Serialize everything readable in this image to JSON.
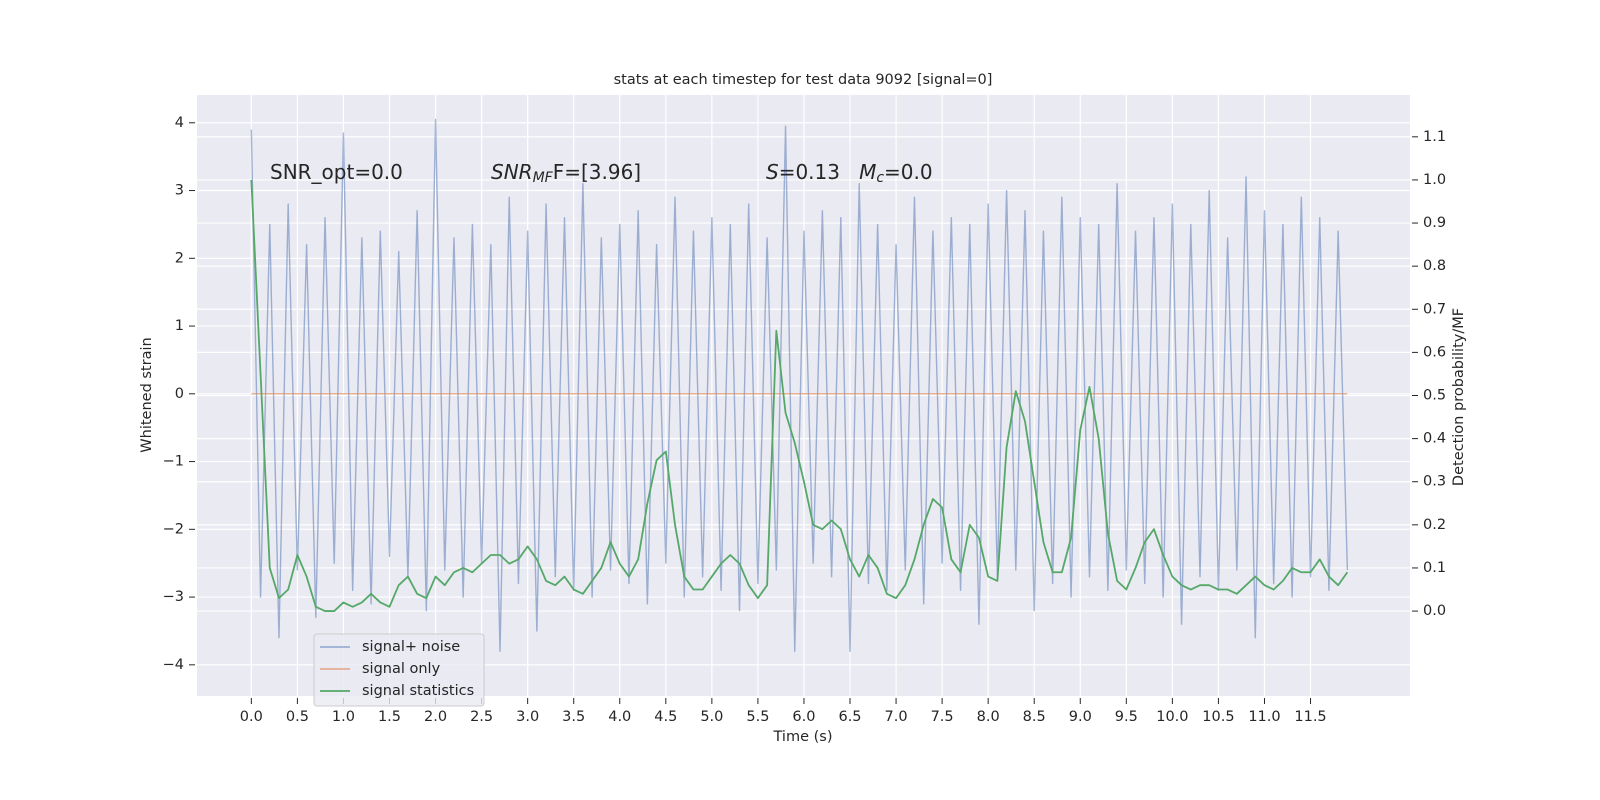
{
  "chart_data": {
    "type": "line",
    "title": "stats at each timestep for test data 9092 [signal=0]",
    "xlabel": "Time (s)",
    "ylabel": "Whitened strain",
    "y2label": "Detection probability/MF",
    "annotations": [
      {
        "segments": [
          {
            "text": "SNR_opt=0.0",
            "style": "normal"
          }
        ]
      },
      {
        "segments": [
          {
            "text": "SNR",
            "style": "italic"
          },
          {
            "text": "MF",
            "style": "italic-sub"
          },
          {
            "text": "F=[3.96]",
            "style": "normal"
          }
        ]
      },
      {
        "segments": [
          {
            "text": "S",
            "style": "italic"
          },
          {
            "text": "=0.13   ",
            "style": "normal"
          },
          {
            "text": "M",
            "style": "italic"
          },
          {
            "text": "c",
            "style": "italic-sub"
          },
          {
            "text": "=0.0",
            "style": "normal"
          }
        ]
      }
    ],
    "x": [
      0,
      0.1,
      0.2,
      0.3,
      0.4,
      0.5,
      0.6,
      0.7,
      0.8,
      0.9,
      1,
      1.1,
      1.2,
      1.3,
      1.4,
      1.5,
      1.6,
      1.7,
      1.8,
      1.9,
      2,
      2.1,
      2.2,
      2.3,
      2.4,
      2.5,
      2.6,
      2.7,
      2.8,
      2.9,
      3,
      3.1,
      3.2,
      3.3,
      3.4,
      3.5,
      3.6,
      3.7,
      3.8,
      3.9,
      4,
      4.1,
      4.2,
      4.3,
      4.4,
      4.5,
      4.6,
      4.7,
      4.8,
      4.9,
      5,
      5.1,
      5.2,
      5.3,
      5.4,
      5.5,
      5.6,
      5.7,
      5.8,
      5.9,
      6,
      6.1,
      6.2,
      6.3,
      6.4,
      6.5,
      6.6,
      6.7,
      6.8,
      6.9,
      7,
      7.1,
      7.2,
      7.3,
      7.4,
      7.5,
      7.6,
      7.7,
      7.8,
      7.9,
      8,
      8.1,
      8.2,
      8.3,
      8.4,
      8.5,
      8.6,
      8.7,
      8.8,
      8.9,
      9,
      9.1,
      9.2,
      9.3,
      9.4,
      9.5,
      9.6,
      9.7,
      9.8,
      9.9,
      10,
      10.1,
      10.2,
      10.3,
      10.4,
      10.5,
      10.6,
      10.7,
      10.8,
      10.9,
      11,
      11.1,
      11.2,
      11.3,
      11.4,
      11.5,
      11.6,
      11.7,
      11.8,
      11.9
    ],
    "series": [
      {
        "name": "signal+ noise",
        "color": "#4c72b0",
        "axis": "y",
        "values": [
          3.9,
          -3.0,
          2.5,
          -3.6,
          2.8,
          -2.6,
          2.2,
          -3.3,
          2.6,
          -2.5,
          3.85,
          -2.9,
          2.3,
          -3.1,
          2.4,
          -2.4,
          2.1,
          -2.7,
          2.7,
          -3.2,
          4.05,
          -2.6,
          2.3,
          -3.0,
          2.5,
          -2.5,
          2.2,
          -3.8,
          2.9,
          -2.8,
          2.4,
          -3.5,
          2.8,
          -2.7,
          2.6,
          -2.9,
          3.1,
          -3.0,
          2.3,
          -2.6,
          2.5,
          -2.8,
          2.7,
          -3.1,
          2.2,
          -2.5,
          2.9,
          -3.0,
          2.4,
          -2.7,
          2.6,
          -2.9,
          2.5,
          -3.2,
          2.8,
          -2.8,
          2.3,
          -2.6,
          3.95,
          -3.8,
          2.4,
          -2.5,
          2.7,
          -2.7,
          2.6,
          -3.8,
          3.1,
          -2.8,
          2.5,
          -2.9,
          2.2,
          -2.6,
          2.9,
          -3.1,
          2.4,
          -2.5,
          2.6,
          -2.9,
          2.5,
          -3.4,
          2.8,
          -2.7,
          3.0,
          -2.6,
          2.7,
          -3.2,
          2.4,
          -2.8,
          2.9,
          -3.0,
          2.6,
          -2.7,
          2.5,
          -2.9,
          3.1,
          -2.6,
          2.4,
          -2.8,
          2.6,
          -3.0,
          2.8,
          -3.4,
          2.5,
          -2.7,
          3.0,
          -2.9,
          2.3,
          -2.6,
          3.2,
          -3.6,
          2.7,
          -2.8,
          2.5,
          -3.0,
          2.9,
          -2.7,
          2.6,
          -2.9,
          2.4,
          -2.6
        ]
      },
      {
        "name": "signal only",
        "color": "#dd8452",
        "axis": "y",
        "values": [
          0,
          0,
          0,
          0,
          0,
          0,
          0,
          0,
          0,
          0,
          0,
          0,
          0,
          0,
          0,
          0,
          0,
          0,
          0,
          0,
          0,
          0,
          0,
          0,
          0,
          0,
          0,
          0,
          0,
          0,
          0,
          0,
          0,
          0,
          0,
          0,
          0,
          0,
          0,
          0,
          0,
          0,
          0,
          0,
          0,
          0,
          0,
          0,
          0,
          0,
          0,
          0,
          0,
          0,
          0,
          0,
          0,
          0,
          0,
          0,
          0,
          0,
          0,
          0,
          0,
          0,
          0,
          0,
          0,
          0,
          0,
          0,
          0,
          0,
          0,
          0,
          0,
          0,
          0,
          0,
          0,
          0,
          0,
          0,
          0,
          0,
          0,
          0,
          0,
          0,
          0,
          0,
          0,
          0,
          0,
          0,
          0,
          0,
          0,
          0,
          0,
          0,
          0,
          0,
          0,
          0,
          0,
          0,
          0,
          0,
          0,
          0,
          0,
          0,
          0,
          0,
          0,
          0,
          0,
          0
        ]
      },
      {
        "name": "signal statistics",
        "color": "#55a868",
        "axis": "y2",
        "values": [
          1.0,
          0.55,
          0.1,
          0.03,
          0.05,
          0.13,
          0.08,
          0.01,
          0.0,
          0.0,
          0.02,
          0.01,
          0.02,
          0.04,
          0.02,
          0.01,
          0.06,
          0.08,
          0.04,
          0.03,
          0.08,
          0.06,
          0.09,
          0.1,
          0.09,
          0.11,
          0.13,
          0.13,
          0.11,
          0.12,
          0.15,
          0.12,
          0.07,
          0.06,
          0.08,
          0.05,
          0.04,
          0.07,
          0.1,
          0.16,
          0.11,
          0.08,
          0.12,
          0.25,
          0.35,
          0.37,
          0.2,
          0.08,
          0.05,
          0.05,
          0.08,
          0.11,
          0.13,
          0.11,
          0.06,
          0.03,
          0.06,
          0.65,
          0.46,
          0.39,
          0.3,
          0.2,
          0.19,
          0.21,
          0.19,
          0.12,
          0.08,
          0.13,
          0.1,
          0.04,
          0.03,
          0.06,
          0.12,
          0.2,
          0.26,
          0.24,
          0.12,
          0.09,
          0.2,
          0.17,
          0.08,
          0.07,
          0.38,
          0.51,
          0.44,
          0.3,
          0.16,
          0.09,
          0.09,
          0.17,
          0.42,
          0.52,
          0.4,
          0.18,
          0.07,
          0.05,
          0.1,
          0.16,
          0.19,
          0.13,
          0.08,
          0.06,
          0.05,
          0.06,
          0.06,
          0.05,
          0.05,
          0.04,
          0.06,
          0.08,
          0.06,
          0.05,
          0.07,
          0.1,
          0.09,
          0.09,
          0.12,
          0.08,
          0.06,
          0.09
        ]
      }
    ],
    "xlim": [
      -0.59,
      12.58
    ],
    "xticks": [
      {
        "value": 0,
        "label": "0.0"
      },
      0.5,
      {
        "value": 1,
        "label": "1.0"
      },
      1.5,
      {
        "value": 2,
        "label": "2.0"
      },
      2.5,
      {
        "value": 3,
        "label": "3.0"
      },
      3.5,
      {
        "value": 4,
        "label": "4.0"
      },
      4.5,
      {
        "value": 5,
        "label": "5.0"
      },
      5.5,
      {
        "value": 6,
        "label": "6.0"
      },
      6.5,
      {
        "value": 7,
        "label": "7.0"
      },
      7.5,
      {
        "value": 8,
        "label": "8.0"
      },
      8.5,
      {
        "value": 9,
        "label": "9.0"
      },
      9.5,
      {
        "value": 10,
        "label": "10.0"
      },
      10.5,
      {
        "value": 11,
        "label": "11.0"
      },
      11.5
    ],
    "ylim": [
      -4.46,
      4.41
    ],
    "yticks": [
      {
        "value": -4,
        "label": "−4"
      },
      {
        "value": -3,
        "label": "−3"
      },
      {
        "value": -2,
        "label": "−2"
      },
      {
        "value": -1,
        "label": "−1"
      },
      0,
      1,
      2,
      3,
      4
    ],
    "y2lim": [
      -0.197,
      1.197
    ],
    "y2ticks": [
      {
        "value": 0,
        "label": "0.0"
      },
      0.1,
      0.2,
      0.3,
      0.4,
      0.5,
      0.6,
      0.7,
      0.8,
      0.9,
      {
        "value": 1,
        "label": "1.0"
      },
      1.1
    ],
    "grid": true,
    "legend": "lower left",
    "background": "#eaeaf2"
  }
}
